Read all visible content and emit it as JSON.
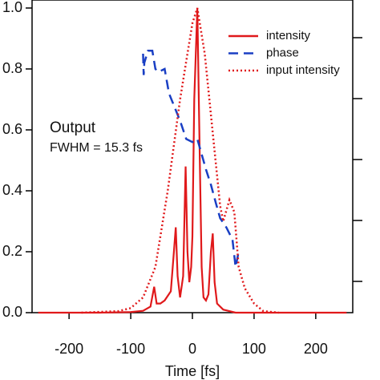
{
  "chart_data": {
    "type": "line",
    "x_label": "Time [fs]",
    "annotations": [
      "Output",
      "FWHM = 15.3 fs"
    ],
    "xlim": [
      -260,
      260
    ],
    "xticks": [
      -200,
      -100,
      0,
      100,
      200
    ],
    "ylim": [
      0,
      1
    ],
    "yticks": [
      {
        "value": 0,
        "label": "0.0"
      },
      {
        "value": 0.2,
        "label": "0.2"
      },
      {
        "value": 0.4,
        "label": "0.4"
      },
      {
        "value": 0.6,
        "label": "0.6"
      },
      {
        "value": 0.8,
        "label": "0.8"
      },
      {
        "value": 1,
        "label": "1.0"
      }
    ],
    "series": [
      {
        "name": "intensity",
        "color": "#e0191b",
        "dash": "solid",
        "x": [
          -250,
          -150,
          -100,
          -80,
          -68,
          -62,
          -58,
          -52,
          -45,
          -35,
          -30,
          -27,
          -24,
          -20,
          -15,
          -11,
          -8,
          -5,
          -2,
          0,
          3,
          8,
          12,
          15,
          18,
          22,
          26,
          30,
          33,
          36,
          40,
          50,
          70,
          250
        ],
        "values": [
          0,
          0,
          0.002,
          0.006,
          0.02,
          0.085,
          0.03,
          0.03,
          0.04,
          0.07,
          0.2,
          0.28,
          0.12,
          0.05,
          0.12,
          0.48,
          0.2,
          0.1,
          0.15,
          0.25,
          0.7,
          1.0,
          0.5,
          0.15,
          0.05,
          0.04,
          0.06,
          0.2,
          0.26,
          0.1,
          0.03,
          0.01,
          0,
          0
        ]
      },
      {
        "name": "phase",
        "color": "#1a3fc4",
        "dash": "dashed",
        "x": [
          -80,
          -79,
          -78,
          -72,
          -65,
          -60,
          -55,
          -45,
          -38,
          -30,
          -20,
          -10,
          0,
          8,
          15,
          22,
          30,
          38,
          45,
          55,
          65,
          70,
          75
        ],
        "values": [
          0.85,
          0.78,
          0.82,
          0.86,
          0.86,
          0.8,
          0.79,
          0.8,
          0.72,
          0.68,
          0.63,
          0.57,
          0.56,
          0.57,
          0.52,
          0.47,
          0.42,
          0.36,
          0.31,
          0.28,
          0.24,
          0.15,
          0.2
        ]
      },
      {
        "name": "input intensity",
        "color": "#e0191b",
        "dash": "dotted",
        "x": [
          -180,
          -120,
          -100,
          -80,
          -60,
          -40,
          -20,
          0,
          8,
          20,
          35,
          45,
          50,
          60,
          68,
          75,
          85,
          100,
          115,
          140
        ],
        "values": [
          0,
          0.005,
          0.015,
          0.05,
          0.15,
          0.4,
          0.7,
          0.95,
          1.0,
          0.85,
          0.55,
          0.35,
          0.3,
          0.37,
          0.33,
          0.15,
          0.08,
          0.03,
          0.005,
          0
        ]
      }
    ]
  }
}
